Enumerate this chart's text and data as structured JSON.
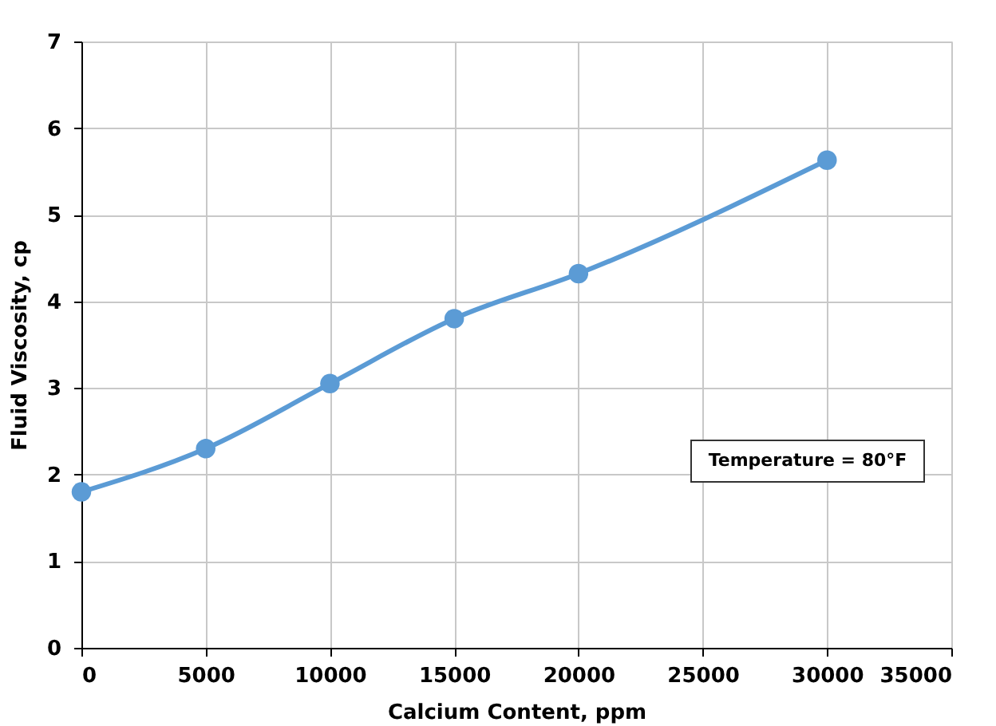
{
  "chart_data": {
    "type": "line",
    "xlabel": "Calcium Content, ppm",
    "ylabel": "Fluid Viscosity, cp",
    "x": [
      0,
      5000,
      10000,
      15000,
      20000,
      30000
    ],
    "series": [
      {
        "color": "#5b9bd5",
        "values": [
          1.8,
          2.3,
          3.05,
          3.8,
          4.32,
          5.63
        ]
      }
    ],
    "xlim": [
      0,
      35000
    ],
    "xticks": [
      0,
      5000,
      10000,
      15000,
      20000,
      25000,
      30000,
      35000
    ],
    "ylim": [
      0,
      7
    ],
    "yticks": [
      0,
      1,
      2,
      3,
      4,
      5,
      6,
      7
    ],
    "grid": true,
    "marker": "circle",
    "line_style": "solid",
    "annotations": [
      "Temperature = 80°F"
    ]
  }
}
